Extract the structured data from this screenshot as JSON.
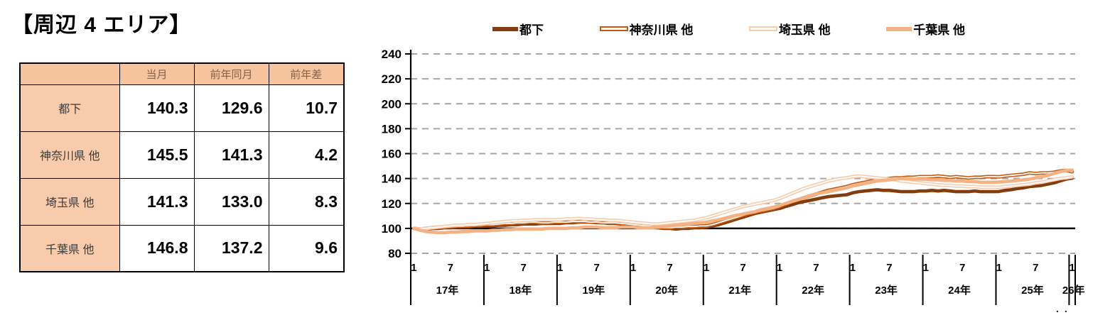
{
  "title": "【周辺 4 エリア】",
  "table": {
    "corner_label": "",
    "headers": [
      "当月",
      "前年同月",
      "前年差"
    ],
    "rows": [
      {
        "label": "都下",
        "current": "140.3",
        "prev_year_same_month": "129.6",
        "yoy_diff": "10.7"
      },
      {
        "label": "神奈川県 他",
        "current": "145.5",
        "prev_year_same_month": "141.3",
        "yoy_diff": "4.2"
      },
      {
        "label": "埼玉県 他",
        "current": "141.3",
        "prev_year_same_month": "133.0",
        "yoy_diff": "8.3"
      },
      {
        "label": "千葉県 他",
        "current": "146.8",
        "prev_year_same_month": "137.2",
        "yoy_diff": "9.6"
      }
    ],
    "header_bg": "#F5C49F",
    "label_bg": "#F7CBAB",
    "border_color": "#000000"
  },
  "chart_data": {
    "type": "line",
    "title": "",
    "xlabel": "",
    "ylabel": "",
    "y_axis": {
      "min": 80,
      "max": 240,
      "tick_step": 20,
      "ticks": [
        240,
        220,
        200,
        180,
        160,
        140,
        120,
        100,
        80
      ]
    },
    "baseline_value": 100,
    "grid": "horizontal-dashed",
    "grid_color": "#A6A6A6",
    "axis_color": "#000000",
    "legend_position": "top",
    "x_axis": {
      "unit": "month",
      "start": "2017-01",
      "end": "2026-01",
      "month_labels_shown": [
        "1",
        "7"
      ],
      "year_labels": [
        "17年",
        "18年",
        "19年",
        "20年",
        "21年",
        "22年",
        "23年",
        "24年",
        "25年",
        "26年"
      ]
    },
    "series": [
      {
        "name": "都下",
        "color": "#843C0C",
        "line_style": "solid",
        "values": [
          100,
          99.5,
          99.5,
          100,
          100,
          100.5,
          100.5,
          101,
          101,
          101,
          101.5,
          101.5,
          102,
          102,
          102.5,
          102.5,
          103,
          103,
          103.5,
          103.5,
          103.5,
          104,
          104,
          104,
          104,
          104.5,
          104.5,
          105,
          105,
          105,
          104.5,
          104.5,
          104,
          104,
          103.5,
          103.5,
          103,
          102,
          101.5,
          101,
          100.5,
          100,
          100,
          99.5,
          100,
          100,
          100.5,
          100.5,
          101,
          102,
          103,
          104.5,
          106,
          107.5,
          109,
          110.5,
          112,
          113,
          114,
          115,
          116,
          117.5,
          119,
          120.5,
          121.5,
          122.5,
          123.5,
          124.5,
          125.5,
          126,
          126.5,
          127,
          128.5,
          129.5,
          130,
          130.5,
          131,
          130.5,
          130.5,
          130,
          129.5,
          129.5,
          129.5,
          130,
          130,
          130.5,
          130,
          130.5,
          130,
          129.5,
          129.5,
          129.5,
          130,
          129.5,
          129.5,
          129.5,
          129.6,
          130.5,
          131,
          132,
          132.5,
          133.5,
          134,
          134.5,
          135.5,
          136.5,
          138,
          139.5,
          140.3
        ]
      },
      {
        "name": "神奈川県 他",
        "color": "#C55A11",
        "line_style": "outlined",
        "values": [
          100,
          99.5,
          100,
          100.5,
          101,
          101,
          101.5,
          101.5,
          102,
          102,
          102.5,
          102.5,
          103,
          103,
          103.5,
          104,
          104,
          104.5,
          104.5,
          105,
          105,
          104.5,
          104.5,
          105,
          105,
          105,
          105.5,
          105.5,
          105.5,
          105,
          105,
          104.5,
          104.5,
          104.5,
          104,
          103.5,
          103,
          102.5,
          102,
          101.5,
          101,
          100.5,
          100.5,
          101,
          101,
          101.5,
          101.5,
          102,
          102,
          103,
          104.5,
          106,
          107.5,
          109,
          110.5,
          112,
          113,
          114,
          115,
          116,
          117.5,
          119.5,
          121.5,
          123,
          124.5,
          126,
          127.5,
          129,
          130.5,
          131.5,
          132.5,
          133.5,
          135,
          136,
          137,
          138,
          139,
          139.5,
          140,
          140.5,
          140.5,
          141,
          141,
          141.5,
          141.5,
          141.5,
          142,
          141.5,
          141,
          141.5,
          141,
          140.5,
          141,
          141,
          141.5,
          141.5,
          141.3,
          142,
          142.5,
          143,
          143.5,
          144.5,
          144,
          144.5,
          144.5,
          145,
          146,
          146.5,
          145.5
        ]
      },
      {
        "name": "埼玉県 他",
        "color": "#F8CBAD",
        "line_style": "outlined",
        "values": [
          100,
          99.5,
          100,
          100.5,
          101,
          101.5,
          102,
          102.5,
          102.5,
          103,
          103,
          103.5,
          104,
          104.5,
          105,
          105.5,
          106,
          106,
          106.5,
          106.5,
          107,
          107,
          107,
          107,
          107,
          107.5,
          107.5,
          108,
          107.5,
          107.5,
          107,
          107,
          106.5,
          106.5,
          106,
          105.5,
          105,
          104.5,
          104,
          103.5,
          103.5,
          104,
          104.5,
          105,
          105.5,
          106,
          106.5,
          107.5,
          108.5,
          110,
          111.5,
          113,
          114.5,
          116,
          117.5,
          118.5,
          119.5,
          120.5,
          121.5,
          122.5,
          124,
          126,
          128,
          130,
          132,
          133.5,
          135,
          136.5,
          138,
          139,
          140,
          140.5,
          141.5,
          142,
          141.5,
          141,
          140.5,
          140,
          139.5,
          139,
          138,
          137.5,
          137,
          136.5,
          136,
          135.5,
          135,
          134.5,
          134.5,
          134,
          134,
          133.5,
          133.5,
          133,
          133,
          133,
          133,
          133.5,
          134,
          134.5,
          135,
          135.5,
          136.5,
          137,
          138,
          139,
          140,
          140.5,
          141.3
        ]
      },
      {
        "name": "千葉県 他",
        "color": "#F4B183",
        "line_style": "solid",
        "values": [
          100,
          98.5,
          97.5,
          97,
          96.5,
          96.5,
          97,
          97,
          97.5,
          97.5,
          98,
          98,
          98,
          98.5,
          98.5,
          99,
          99,
          99.5,
          99.5,
          99.5,
          99.5,
          99.5,
          100,
          100,
          100,
          100,
          100.5,
          100.5,
          101,
          101,
          101,
          100.5,
          100.5,
          100.5,
          101,
          101,
          101,
          100.5,
          100.5,
          100.5,
          101,
          101.5,
          102,
          102.5,
          103,
          103.5,
          104,
          104.5,
          105,
          106,
          107,
          108,
          109.5,
          110.5,
          111.5,
          112.5,
          113.5,
          115,
          116,
          117,
          118.5,
          120,
          121.5,
          123,
          124.5,
          126,
          127.5,
          128.5,
          129.5,
          130.5,
          131.5,
          132.5,
          134,
          135,
          136,
          137,
          138,
          138.5,
          139,
          139.5,
          140,
          140,
          139.5,
          139.5,
          139.5,
          139,
          139,
          138.5,
          138.5,
          138,
          138,
          137.5,
          137.5,
          137,
          137,
          137,
          137.2,
          137.5,
          138,
          138.5,
          139,
          139.5,
          140.5,
          141.5,
          142.5,
          144,
          145.5,
          146.5,
          146.8
        ]
      }
    ]
  },
  "misc": {
    "cropped_dots": ".."
  }
}
